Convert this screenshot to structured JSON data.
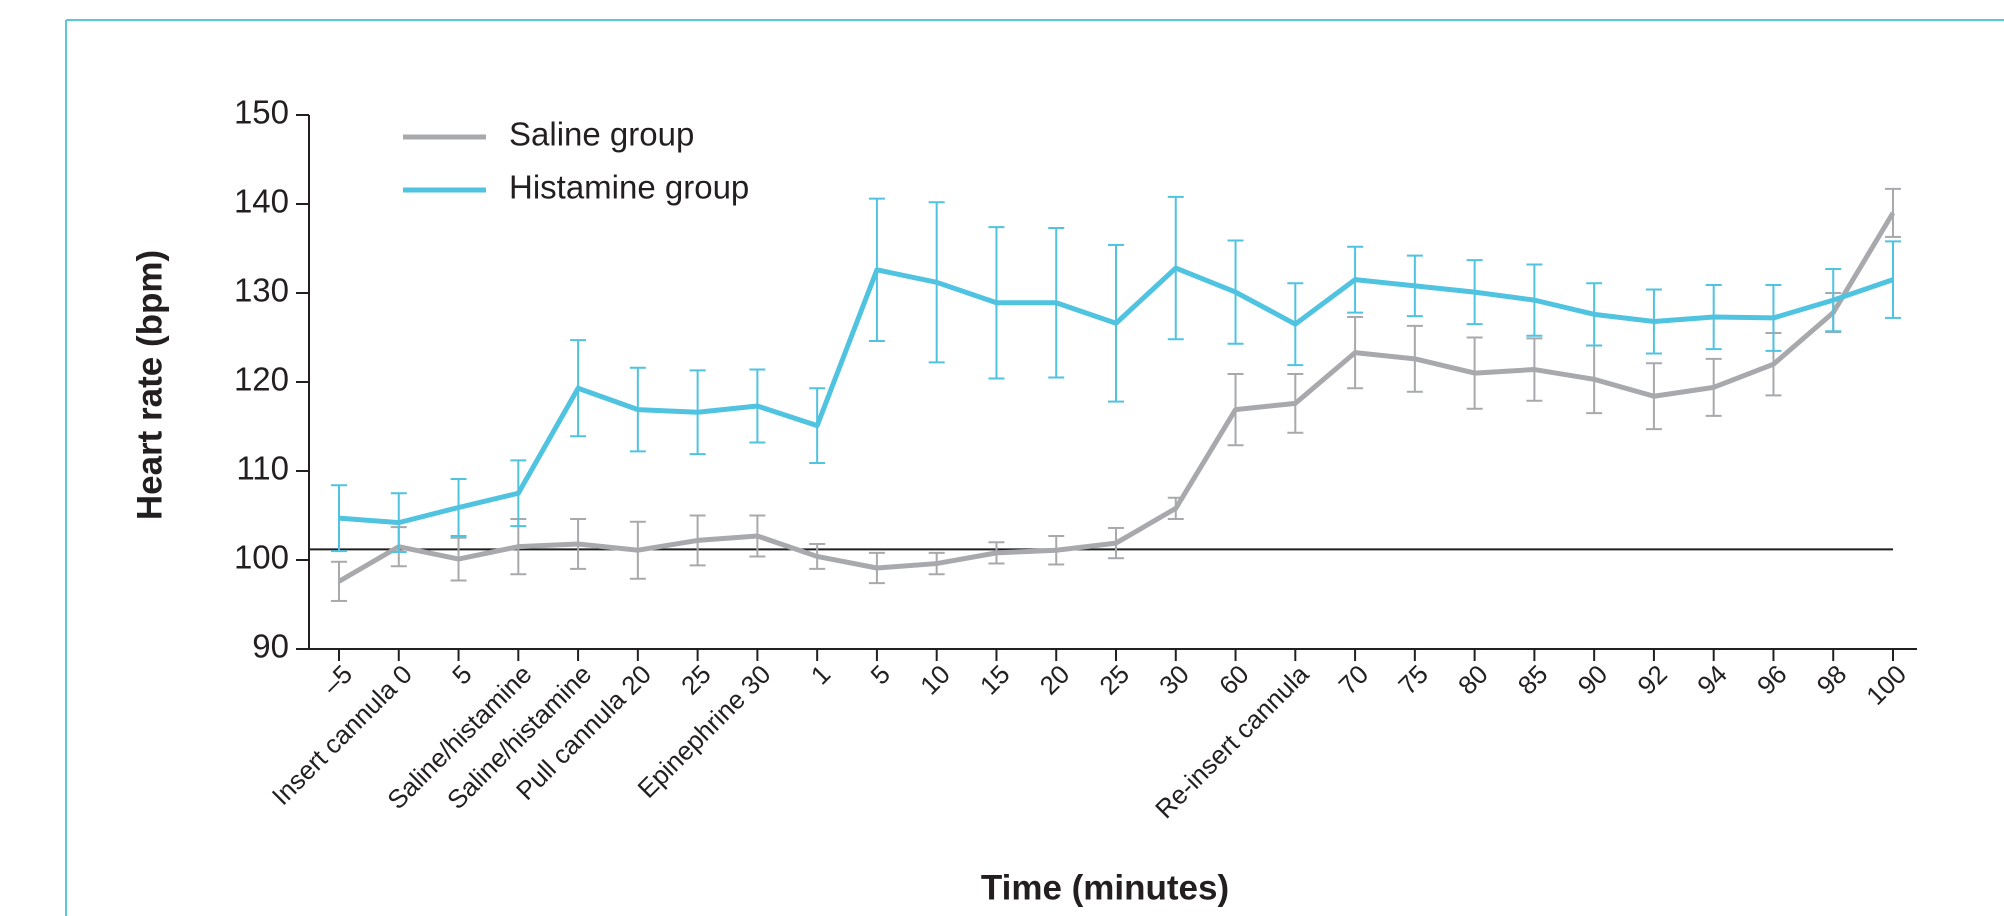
{
  "chart_data": {
    "type": "line",
    "x_label": "Time (minutes)",
    "y_label": "Heart rate (bpm)",
    "categories": [
      "–5",
      "Insert cannula 0",
      "5",
      "Saline/histamine",
      "Saline/histamine",
      "Pull cannula 20",
      "25",
      "Epinephrine 30",
      "1",
      "5",
      "10",
      "15",
      "20",
      "25",
      "30",
      "60",
      "Re-insert cannula",
      "70",
      "75",
      "80",
      "85",
      "90",
      "92",
      "94",
      "96",
      "98",
      "100"
    ],
    "series": [
      {
        "name": "Saline group",
        "color": "#a7a9ac",
        "values": [
          97.6,
          101.5,
          100.1,
          101.5,
          101.8,
          101.1,
          102.2,
          102.7,
          100.4,
          99.1,
          99.6,
          100.8,
          101.1,
          101.9,
          105.8,
          116.9,
          117.6,
          123.3,
          122.6,
          121.0,
          121.4,
          120.3,
          118.4,
          119.4,
          122.0,
          127.8,
          139.0
        ],
        "errors": [
          2.2,
          2.2,
          2.4,
          3.1,
          2.8,
          3.2,
          2.8,
          2.3,
          1.4,
          1.7,
          1.2,
          1.2,
          1.6,
          1.7,
          1.2,
          4.0,
          3.3,
          4.0,
          3.7,
          4.0,
          3.5,
          3.8,
          3.7,
          3.2,
          3.5,
          2.2,
          2.7
        ]
      },
      {
        "name": "Histamine group",
        "color": "#4fc3e0",
        "values": [
          104.7,
          104.2,
          105.9,
          107.5,
          119.3,
          116.9,
          116.6,
          117.3,
          115.1,
          132.6,
          131.2,
          128.9,
          128.9,
          126.6,
          132.8,
          130.1,
          126.5,
          131.5,
          130.8,
          130.1,
          129.2,
          127.6,
          126.8,
          127.3,
          127.2,
          129.2,
          131.5
        ],
        "errors": [
          3.7,
          3.3,
          3.2,
          3.7,
          5.4,
          4.7,
          4.7,
          4.1,
          4.2,
          8.0,
          9.0,
          8.5,
          8.4,
          8.8,
          8.0,
          5.8,
          4.6,
          3.7,
          3.4,
          3.6,
          4.0,
          3.5,
          3.6,
          3.6,
          3.7,
          3.5,
          4.3
        ]
      }
    ],
    "reference_line": 101.2,
    "ylim": [
      90,
      150
    ],
    "yticks": [
      90,
      100,
      110,
      120,
      130,
      140,
      150
    ],
    "legend": "upper-left"
  }
}
